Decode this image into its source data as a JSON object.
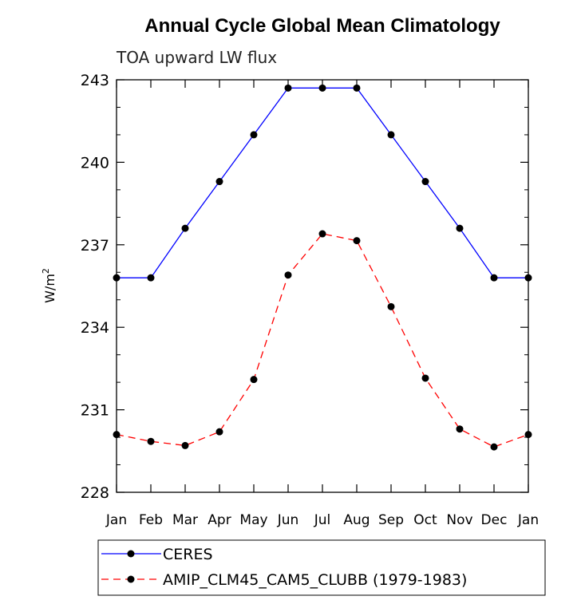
{
  "chart_data": {
    "type": "line",
    "title": "Annual Cycle Global Mean Climatology",
    "subtitle": "TOA upward LW flux",
    "ylabel_main": "W/m",
    "ylabel_sup": "2",
    "ylim": [
      228,
      243
    ],
    "yticks": [
      "243",
      "240",
      "237",
      "234",
      "231",
      "228"
    ],
    "yticks_values": [
      243,
      240,
      237,
      234,
      231,
      228
    ],
    "yminor_values": [
      229,
      230,
      232,
      233,
      235,
      236,
      238,
      239,
      241,
      242
    ],
    "categories": [
      "Jan",
      "Feb",
      "Mar",
      "Apr",
      "May",
      "Jun",
      "Jul",
      "Aug",
      "Sep",
      "Oct",
      "Nov",
      "Dec",
      "Jan"
    ],
    "grid": false,
    "legend_position": "bottom",
    "series": [
      {
        "name": "CERES",
        "color": "#0000ff",
        "dashed": false,
        "values": [
          235.8,
          235.8,
          237.6,
          239.3,
          241.0,
          242.7,
          242.7,
          242.7,
          241.0,
          239.3,
          237.6,
          235.8,
          235.8
        ]
      },
      {
        "name": "AMIP_CLM45_CAM5_CLUBB (1979-1983)",
        "color": "#ff0000",
        "dashed": true,
        "values": [
          230.1,
          229.85,
          229.7,
          230.2,
          232.1,
          235.9,
          237.4,
          237.15,
          234.75,
          232.15,
          230.3,
          229.65,
          230.1
        ]
      }
    ]
  }
}
